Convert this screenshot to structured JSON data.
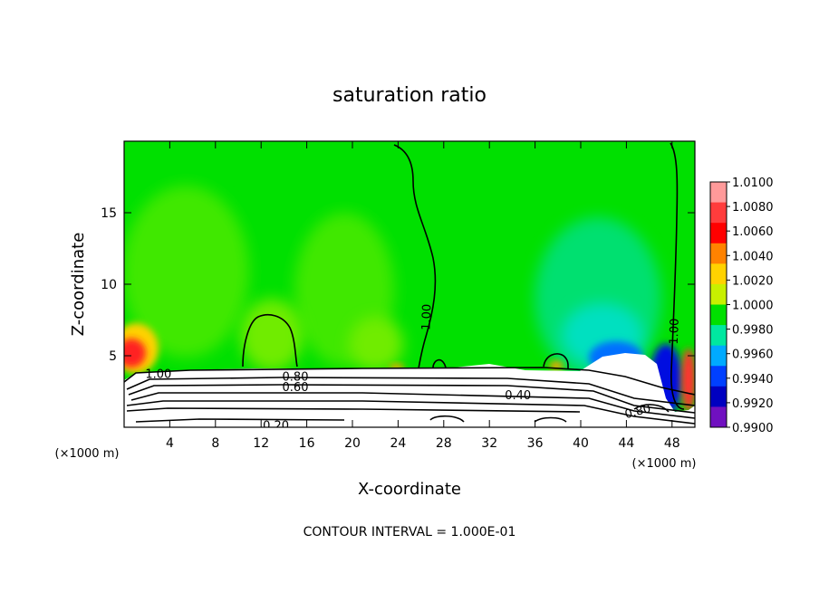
{
  "chart_data": {
    "type": "heatmap",
    "title": "saturation ratio",
    "xlabel": "X-coordinate",
    "ylabel": "Z-coordinate",
    "x_unit": "(×1000 m)",
    "xlim": [
      0,
      50
    ],
    "ylim": [
      0,
      20
    ],
    "x_ticks": [
      4,
      8,
      12,
      16,
      20,
      24,
      28,
      32,
      36,
      40,
      44,
      48
    ],
    "y_ticks": [
      5,
      10,
      15
    ],
    "colorbar": {
      "levels": [
        "1.0100",
        "1.0080",
        "1.0060",
        "1.0040",
        "1.0020",
        "1.0000",
        "0.9980",
        "0.9960",
        "0.9940",
        "0.9920",
        "0.9900"
      ],
      "colors": [
        "#ff9a9a",
        "#ff3c3c",
        "#ff0000",
        "#ff8200",
        "#ffd200",
        "#c8f000",
        "#00e000",
        "#00e8a0",
        "#00aaff",
        "#0040ff",
        "#0000c0",
        "#7010c0"
      ]
    },
    "background_color": "#00e000",
    "contour_labels": [
      {
        "text": "1.00",
        "x": 26.5,
        "z": 7.7,
        "rotate": -88
      },
      {
        "text": "1.00",
        "x": 48.2,
        "z": 6.7,
        "rotate": -88
      },
      {
        "text": "1.00",
        "x": 3.0,
        "z": 3.7,
        "rotate": 0
      },
      {
        "text": "0.80",
        "x": 15.0,
        "z": 3.5,
        "rotate": 0
      },
      {
        "text": "0.60",
        "x": 15.0,
        "z": 2.8,
        "rotate": 0
      },
      {
        "text": "0.40",
        "x": 34.5,
        "z": 2.2,
        "rotate": 0
      },
      {
        "text": "0.20",
        "x": 13.3,
        "z": 0.1,
        "rotate": 0
      },
      {
        "text": "0.80",
        "x": 45.0,
        "z": 1.1,
        "rotate": -15
      }
    ],
    "footer": "CONTOUR INTERVAL = 1.000E-01"
  }
}
